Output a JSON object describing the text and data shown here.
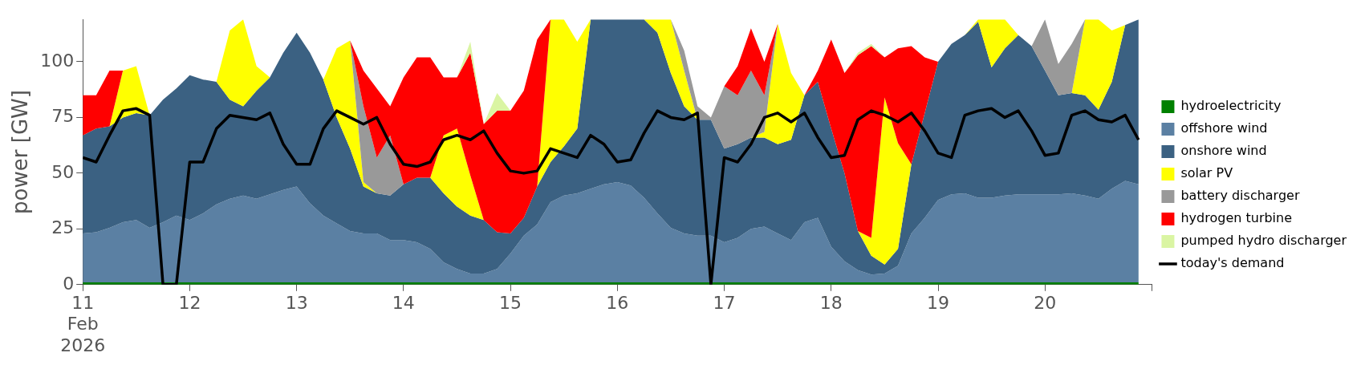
{
  "chart_data": {
    "type": "area",
    "stacked": true,
    "ylabel": "power [GW]",
    "legend": "right",
    "x": [
      "2026-02-11T00:00",
      "2026-02-11T03:00",
      "2026-02-11T06:00",
      "2026-02-11T09:00",
      "2026-02-11T12:00",
      "2026-02-11T15:00",
      "2026-02-11T18:00",
      "2026-02-11T21:00",
      "2026-02-12T00:00",
      "2026-02-12T03:00",
      "2026-02-12T06:00",
      "2026-02-12T09:00",
      "2026-02-12T12:00",
      "2026-02-12T15:00",
      "2026-02-12T18:00",
      "2026-02-12T21:00",
      "2026-02-13T00:00",
      "2026-02-13T03:00",
      "2026-02-13T06:00",
      "2026-02-13T09:00",
      "2026-02-13T12:00",
      "2026-02-13T15:00",
      "2026-02-13T18:00",
      "2026-02-13T21:00",
      "2026-02-14T00:00",
      "2026-02-14T03:00",
      "2026-02-14T06:00",
      "2026-02-14T09:00",
      "2026-02-14T12:00",
      "2026-02-14T15:00",
      "2026-02-14T18:00",
      "2026-02-14T21:00",
      "2026-02-15T00:00",
      "2026-02-15T03:00",
      "2026-02-15T06:00",
      "2026-02-15T09:00",
      "2026-02-15T12:00",
      "2026-02-15T15:00",
      "2026-02-15T18:00",
      "2026-02-15T21:00",
      "2026-02-16T00:00",
      "2026-02-16T03:00",
      "2026-02-16T06:00",
      "2026-02-16T09:00",
      "2026-02-16T12:00",
      "2026-02-16T15:00",
      "2026-02-16T18:00",
      "2026-02-16T21:00",
      "2026-02-17T00:00",
      "2026-02-17T03:00",
      "2026-02-17T06:00",
      "2026-02-17T09:00",
      "2026-02-17T12:00",
      "2026-02-17T15:00",
      "2026-02-17T18:00",
      "2026-02-17T21:00",
      "2026-02-18T00:00",
      "2026-02-18T03:00",
      "2026-02-18T06:00",
      "2026-02-18T09:00",
      "2026-02-18T12:00",
      "2026-02-18T15:00",
      "2026-02-18T18:00",
      "2026-02-18T21:00",
      "2026-02-19T00:00",
      "2026-02-19T03:00",
      "2026-02-19T06:00",
      "2026-02-19T09:00",
      "2026-02-19T12:00",
      "2026-02-19T15:00",
      "2026-02-19T18:00",
      "2026-02-19T21:00",
      "2026-02-20T00:00",
      "2026-02-20T03:00",
      "2026-02-20T06:00",
      "2026-02-20T09:00",
      "2026-02-20T12:00",
      "2026-02-20T15:00",
      "2026-02-20T18:00",
      "2026-02-20T21:00"
    ],
    "xlim": [
      "2026-02-11",
      "2026-02-21"
    ],
    "xticks": [
      {
        "value": "2026-02-11",
        "label": "11\nFeb\n2026"
      },
      {
        "value": "2026-02-12",
        "label": "12"
      },
      {
        "value": "2026-02-13",
        "label": "13"
      },
      {
        "value": "2026-02-14",
        "label": "14"
      },
      {
        "value": "2026-02-15",
        "label": "15"
      },
      {
        "value": "2026-02-16",
        "label": "16"
      },
      {
        "value": "2026-02-17",
        "label": "17"
      },
      {
        "value": "2026-02-18",
        "label": "18"
      },
      {
        "value": "2026-02-19",
        "label": "19"
      },
      {
        "value": "2026-02-20",
        "label": "20"
      },
      {
        "value": "2026-02-21",
        "label": null
      }
    ],
    "ylim": [
      0,
      119
    ],
    "yticks": [
      0,
      25,
      50,
      75,
      100
    ],
    "series": [
      {
        "name": "hydroelectricity",
        "color": "#008000",
        "values": [
          1,
          1,
          1,
          1,
          1,
          1,
          1,
          1,
          1,
          1,
          1,
          1,
          1,
          1,
          1,
          1,
          1,
          1,
          1,
          1,
          1,
          1,
          1,
          1,
          1,
          1,
          1,
          1,
          1,
          1,
          1,
          1,
          1,
          1,
          1,
          1,
          1,
          1,
          1,
          1,
          1,
          1,
          1,
          1,
          1,
          1,
          1,
          1,
          1,
          1,
          1,
          1,
          1,
          1,
          1,
          1,
          1,
          1,
          1,
          1,
          1,
          1,
          1,
          1,
          1,
          1,
          1,
          1,
          1,
          1,
          1,
          1,
          1,
          1,
          1,
          1,
          1,
          1,
          1,
          1
        ]
      },
      {
        "name": "offshore wind",
        "color": "#5b80a3",
        "values": [
          22,
          22.5,
          24.5,
          27,
          28,
          24.5,
          27,
          30,
          28,
          31,
          35,
          37.5,
          39,
          37.5,
          39.5,
          41.5,
          43,
          35.5,
          30,
          26.5,
          23,
          22,
          22,
          19,
          19,
          18,
          15,
          9,
          6,
          4,
          4,
          6,
          13,
          21,
          26,
          36,
          39,
          40,
          42,
          44,
          45,
          43.5,
          38,
          31,
          24.5,
          22,
          21,
          21,
          18,
          20,
          24,
          25,
          22,
          19,
          27,
          29,
          16,
          9.5,
          5.5,
          3.5,
          4,
          7.5,
          22,
          29,
          37,
          39.5,
          40,
          38,
          38,
          39,
          39.5,
          39.5,
          39.5,
          39.5,
          40,
          39,
          37.5,
          42,
          45.5,
          44
        ]
      },
      {
        "name": "onshore wind",
        "color": "#3b6182",
        "values": [
          44,
          46.5,
          45.5,
          47,
          48,
          50.5,
          55,
          57,
          65,
          60,
          55,
          44.5,
          40,
          48.5,
          52.5,
          61.5,
          69,
          67.5,
          61,
          47.5,
          37,
          21,
          18,
          20,
          25,
          29,
          32,
          31,
          28,
          26,
          24,
          16.5,
          9,
          8,
          17,
          18,
          22,
          29,
          76,
          74,
          73,
          74.5,
          80,
          81,
          69.5,
          57,
          52,
          52,
          42,
          42,
          41,
          40,
          40,
          45,
          57,
          61,
          53,
          39.5,
          17.5,
          8.5,
          4,
          7.5,
          31,
          47,
          62,
          67.5,
          71,
          79,
          58.5,
          66,
          71.5,
          66.5,
          55.5,
          44.5,
          45,
          45,
          40,
          48,
          70,
          74
        ]
      },
      {
        "name": "solar PV",
        "color": "#ffff00",
        "values": [
          null,
          null,
          0,
          21,
          21,
          0,
          null,
          null,
          null,
          null,
          0,
          31,
          39,
          11,
          0,
          null,
          null,
          null,
          0,
          31,
          48.5,
          2,
          0,
          null,
          null,
          null,
          0,
          26,
          35,
          18,
          0,
          null,
          null,
          null,
          0,
          64,
          57,
          39,
          0,
          null,
          null,
          null,
          0,
          6,
          24,
          16,
          0,
          null,
          null,
          null,
          0,
          2.5,
          54,
          30,
          0,
          null,
          null,
          null,
          0,
          8,
          75,
          47.5,
          0,
          null,
          null,
          null,
          0,
          1,
          21.5,
          13,
          0,
          null,
          null,
          null,
          0,
          34,
          40.5,
          23,
          0,
          null
        ]
      },
      {
        "name": "battery discharger",
        "color": "#999999",
        "values": [
          null,
          null,
          null,
          null,
          null,
          null,
          null,
          null,
          null,
          null,
          null,
          null,
          null,
          null,
          null,
          null,
          null,
          null,
          null,
          null,
          0,
          34,
          16,
          27,
          0,
          null,
          null,
          null,
          null,
          null,
          null,
          null,
          null,
          null,
          null,
          null,
          null,
          null,
          null,
          null,
          null,
          null,
          null,
          null,
          0,
          9,
          6,
          1,
          28,
          22,
          30,
          16.5,
          0,
          null,
          null,
          null,
          null,
          null,
          null,
          null,
          null,
          null,
          null,
          null,
          null,
          null,
          null,
          null,
          null,
          null,
          null,
          0,
          23,
          14,
          22,
          0,
          null,
          null,
          null,
          null
        ]
      },
      {
        "name": "hydrogen turbine",
        "color": "#ff0000",
        "values": [
          18,
          15,
          25,
          0,
          null,
          null,
          null,
          null,
          null,
          null,
          null,
          null,
          null,
          null,
          null,
          null,
          null,
          null,
          null,
          null,
          0,
          16,
          31,
          13,
          48,
          54,
          54,
          26,
          23,
          55,
          43,
          54.5,
          55,
          57,
          66,
          0,
          null,
          null,
          null,
          null,
          null,
          null,
          null,
          null,
          null,
          null,
          null,
          null,
          0,
          13,
          19,
          15,
          0,
          null,
          0,
          5,
          40,
          45,
          79,
          86,
          18,
          42.5,
          53,
          25,
          0,
          null,
          null,
          null,
          null,
          null,
          null,
          null,
          null,
          null,
          null,
          null,
          null,
          null,
          null,
          null
        ]
      },
      {
        "name": "pumped hydro discharger",
        "color": "#daf5a3",
        "values": [
          null,
          null,
          null,
          null,
          null,
          null,
          null,
          null,
          null,
          null,
          null,
          null,
          null,
          null,
          null,
          null,
          null,
          null,
          null,
          null,
          null,
          null,
          null,
          null,
          null,
          null,
          null,
          null,
          0,
          5,
          0,
          8,
          0,
          null,
          null,
          null,
          null,
          null,
          null,
          null,
          null,
          null,
          null,
          null,
          null,
          null,
          null,
          null,
          null,
          null,
          null,
          null,
          null,
          null,
          null,
          null,
          null,
          0,
          1,
          1,
          0,
          null,
          null,
          null,
          null,
          null,
          null,
          null,
          null,
          null,
          null,
          null,
          null,
          null,
          null,
          null,
          null,
          null,
          null,
          null
        ]
      },
      {
        "name": "today's demand",
        "type": "line",
        "color": "#000000",
        "values": [
          57,
          55,
          67,
          78,
          79,
          76,
          0,
          0,
          55,
          55,
          70,
          76,
          75,
          74,
          77,
          63,
          54,
          54,
          70,
          78,
          75,
          72,
          75,
          63,
          54,
          53,
          55,
          65,
          67,
          65,
          69,
          59,
          51,
          50,
          51,
          61,
          59,
          57,
          67,
          63,
          55,
          56,
          68,
          78,
          75,
          74,
          77,
          0,
          57,
          55,
          63,
          75,
          77,
          73,
          77,
          66,
          57,
          58,
          74,
          78,
          76,
          73,
          77,
          69,
          59,
          57,
          76,
          78,
          79,
          75,
          78,
          69,
          58,
          59,
          76,
          78,
          74,
          73,
          76,
          65
        ]
      }
    ]
  }
}
